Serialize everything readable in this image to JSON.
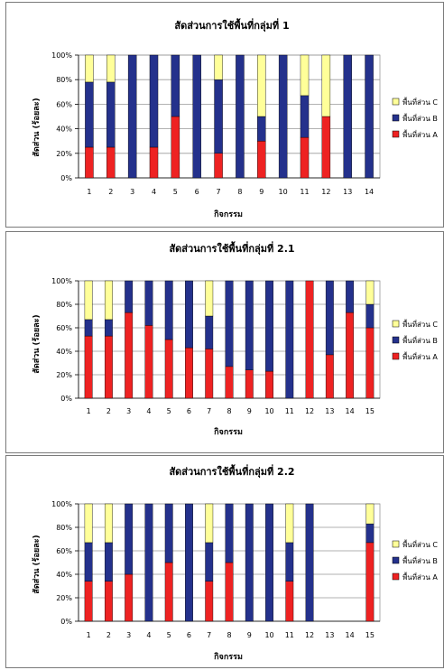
{
  "colors": {
    "area_a": "#ee2222",
    "area_b": "#24318c",
    "area_c": "#ffff99",
    "grid": "#999999",
    "axis": "#000000"
  },
  "chart_data": [
    {
      "type": "bar",
      "stacked": true,
      "percent": true,
      "title": "สัดส่วนการใช้พื้นที่กลุ่มที่ 1",
      "xlabel": "กิจกรรม",
      "ylabel": "สัดส่วน (ร้อยละ)",
      "ylim": [
        0,
        100
      ],
      "yticks": [
        "0%",
        "20%",
        "40%",
        "60%",
        "80%",
        "100%"
      ],
      "grid": true,
      "legend_position": "right",
      "categories": [
        "1",
        "2",
        "3",
        "4",
        "5",
        "6",
        "7",
        "8",
        "9",
        "10",
        "11",
        "12",
        "13",
        "14"
      ],
      "series": [
        {
          "name": "พื้นที่ส่วน A",
          "color": "#ee2222",
          "values": [
            25,
            25,
            0,
            25,
            50,
            0,
            20,
            0,
            30,
            0,
            33,
            50,
            0,
            0
          ]
        },
        {
          "name": "พื้นที่ส่วน B",
          "color": "#24318c",
          "values": [
            53,
            53,
            100,
            75,
            50,
            100,
            60,
            100,
            20,
            100,
            34,
            0,
            100,
            100
          ]
        },
        {
          "name": "พื้นที่ส่วน C",
          "color": "#ffff99",
          "values": [
            22,
            22,
            0,
            0,
            0,
            0,
            20,
            0,
            50,
            0,
            33,
            50,
            0,
            0
          ]
        }
      ]
    },
    {
      "type": "bar",
      "stacked": true,
      "percent": true,
      "title": "สัดส่วนการใช้พื้นที่กลุ่มที่ 2.1",
      "xlabel": "กิจกรรม",
      "ylabel": "สัดส่วน (ร้อยละ)",
      "ylim": [
        0,
        100
      ],
      "yticks": [
        "0%",
        "20%",
        "40%",
        "60%",
        "80%",
        "100%"
      ],
      "grid": true,
      "legend_position": "right",
      "categories": [
        "1",
        "2",
        "3",
        "4",
        "5",
        "6",
        "7",
        "8",
        "9",
        "10",
        "11",
        "12",
        "13",
        "14",
        "15"
      ],
      "series": [
        {
          "name": "พื้นที่ส่วน A",
          "color": "#ee2222",
          "values": [
            53,
            53,
            73,
            62,
            50,
            43,
            42,
            27,
            24,
            23,
            0,
            100,
            37,
            73,
            60
          ]
        },
        {
          "name": "พื้นที่ส่วน B",
          "color": "#24318c",
          "values": [
            14,
            14,
            27,
            38,
            50,
            57,
            28,
            73,
            76,
            77,
            100,
            0,
            63,
            27,
            20
          ]
        },
        {
          "name": "พื้นที่ส่วน C",
          "color": "#ffff99",
          "values": [
            33,
            33,
            0,
            0,
            0,
            0,
            30,
            0,
            0,
            0,
            0,
            0,
            0,
            0,
            20
          ]
        }
      ]
    },
    {
      "type": "bar",
      "stacked": true,
      "percent": true,
      "title": "สัดส่วนการใช้พื้นที่กลุ่มที่ 2.2",
      "xlabel": "กิจกรรม",
      "ylabel": "สัดส่วน (ร้อยละ)",
      "ylim": [
        0,
        100
      ],
      "yticks": [
        "0%",
        "20%",
        "40%",
        "60%",
        "80%",
        "100%"
      ],
      "grid": true,
      "legend_position": "right",
      "categories": [
        "1",
        "2",
        "3",
        "4",
        "5",
        "6",
        "7",
        "8",
        "9",
        "10",
        "11",
        "12",
        "13",
        "14",
        "15"
      ],
      "series": [
        {
          "name": "พื้นที่ส่วน A",
          "color": "#ee2222",
          "values": [
            34,
            34,
            40,
            0,
            50,
            0,
            34,
            50,
            0,
            0,
            34,
            0,
            0,
            0,
            67
          ]
        },
        {
          "name": "พื้นที่ส่วน B",
          "color": "#24318c",
          "values": [
            33,
            33,
            60,
            100,
            50,
            100,
            33,
            50,
            100,
            100,
            33,
            100,
            0,
            0,
            16
          ]
        },
        {
          "name": "พื้นที่ส่วน C",
          "color": "#ffff99",
          "values": [
            33,
            33,
            0,
            0,
            0,
            0,
            33,
            0,
            0,
            0,
            33,
            0,
            0,
            0,
            17
          ]
        }
      ]
    }
  ]
}
